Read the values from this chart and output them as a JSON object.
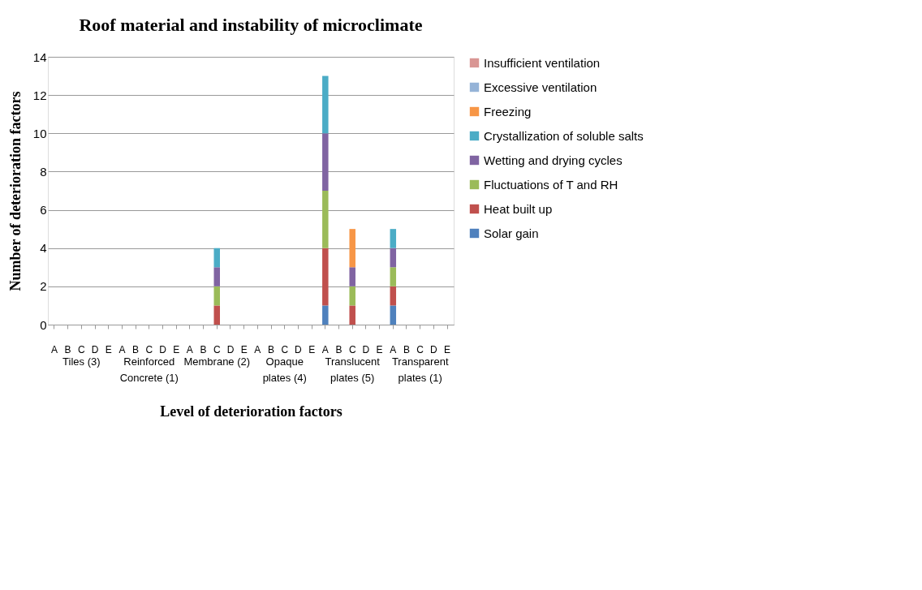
{
  "chart_data": {
    "type": "bar",
    "title": "Roof material and instability of microclimate",
    "xlabel": "Level of deterioration factors",
    "ylabel": "Number of deterioration factors",
    "categories": [
      "A",
      "B",
      "C",
      "D",
      "E",
      "A",
      "B",
      "C",
      "D",
      "E",
      "A",
      "B",
      "C",
      "D",
      "E",
      "A",
      "B",
      "C",
      "D",
      "E",
      "A",
      "B",
      "C",
      "D",
      "E",
      "A",
      "B",
      "C",
      "D",
      "E"
    ],
    "annotations": [
      "Tiles (3)",
      "Reinforced Concrete (1)",
      "Membrane (2)",
      "Opaque plates (4)",
      "Translucent plates (5)",
      "Transparent plates (1)"
    ],
    "stacked": true,
    "ylim": [
      0,
      14
    ],
    "yticks": [
      0,
      2,
      4,
      6,
      8,
      10,
      12,
      14
    ],
    "grid": "y",
    "legend": "right",
    "series": [
      {
        "name": "Solar gain",
        "color": "#4f81bd",
        "values": [
          0,
          0,
          0,
          0,
          0,
          0,
          0,
          0,
          0,
          0,
          0,
          0,
          0,
          0,
          0,
          0,
          0,
          0,
          0,
          0,
          1,
          0,
          0,
          0,
          0,
          1,
          0,
          0,
          0,
          0
        ]
      },
      {
        "name": "Heat built up",
        "color": "#c0504d",
        "values": [
          0,
          0,
          0,
          0,
          0,
          0,
          0,
          0,
          0,
          0,
          0,
          0,
          1,
          0,
          0,
          0,
          0,
          0,
          0,
          0,
          3,
          0,
          1,
          0,
          0,
          1,
          0,
          0,
          0,
          0
        ]
      },
      {
        "name": "Fluctuations of T and RH",
        "color": "#9bbb59",
        "values": [
          0,
          0,
          0,
          0,
          0,
          0,
          0,
          0,
          0,
          0,
          0,
          0,
          1,
          0,
          0,
          0,
          0,
          0,
          0,
          0,
          3,
          0,
          1,
          0,
          0,
          1,
          0,
          0,
          0,
          0
        ]
      },
      {
        "name": "Wetting and drying cycles",
        "color": "#8064a2",
        "values": [
          0,
          0,
          0,
          0,
          0,
          0,
          0,
          0,
          0,
          0,
          0,
          0,
          1,
          0,
          0,
          0,
          0,
          0,
          0,
          0,
          3,
          0,
          1,
          0,
          0,
          1,
          0,
          0,
          0,
          0
        ]
      },
      {
        "name": "Crystallization of soluble salts",
        "color": "#4bacc6",
        "values": [
          0,
          0,
          0,
          0,
          0,
          0,
          0,
          0,
          0,
          0,
          0,
          0,
          1,
          0,
          0,
          0,
          0,
          0,
          0,
          0,
          3,
          0,
          0,
          0,
          0,
          1,
          0,
          0,
          0,
          0
        ]
      },
      {
        "name": "Freezing",
        "color": "#f79646",
        "values": [
          0,
          0,
          0,
          0,
          0,
          0,
          0,
          0,
          0,
          0,
          0,
          0,
          0,
          0,
          0,
          0,
          0,
          0,
          0,
          0,
          0,
          0,
          2,
          0,
          0,
          0,
          0,
          0,
          0,
          0
        ]
      },
      {
        "name": "Excessive ventilation",
        "color": "#95b3d7",
        "values": [
          0,
          0,
          0,
          0,
          0,
          0,
          0,
          0,
          0,
          0,
          0,
          0,
          0,
          0,
          0,
          0,
          0,
          0,
          0,
          0,
          0,
          0,
          0,
          0,
          0,
          0,
          0,
          0,
          0,
          0
        ]
      },
      {
        "name": "Insufficient ventilation",
        "color": "#d99694",
        "values": [
          0,
          0,
          0,
          0,
          0,
          0,
          0,
          0,
          0,
          0,
          0,
          0,
          0,
          0,
          0,
          0,
          0,
          0,
          0,
          0,
          0,
          0,
          0,
          0,
          0,
          0,
          0,
          0,
          0,
          0
        ]
      }
    ]
  }
}
